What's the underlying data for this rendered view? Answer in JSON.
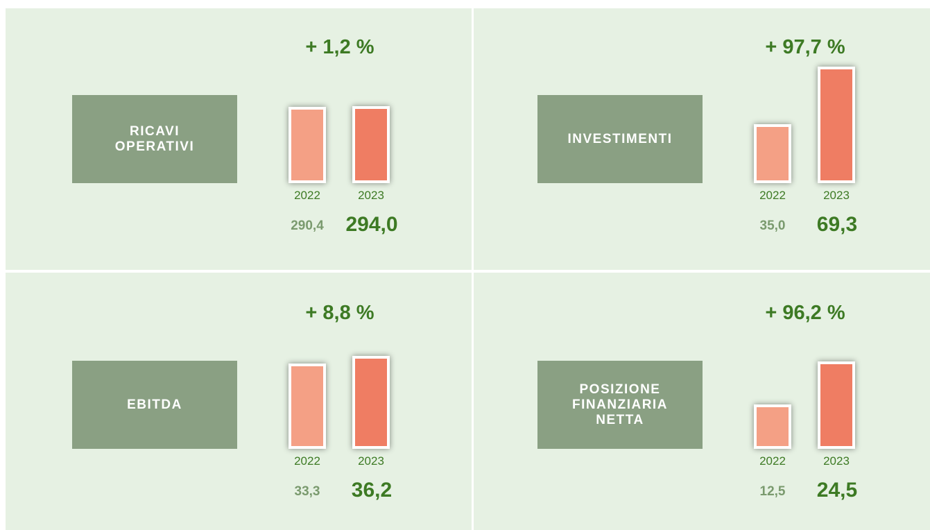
{
  "chart_data": [
    {
      "type": "bar",
      "title": "RICAVI\nOPERATIVI",
      "change": "+ 1,2 %",
      "categories": [
        "2022",
        "2023"
      ],
      "values": [
        290.4,
        294.0
      ],
      "value_labels": [
        "290,4",
        "294,0"
      ],
      "colors": [
        "#f4a085",
        "#ef7d63"
      ],
      "ylim": [
        0,
        450
      ]
    },
    {
      "type": "bar",
      "title": "INVESTIMENTI",
      "change": "+ 97,7 %",
      "categories": [
        "2022",
        "2023"
      ],
      "values": [
        35.0,
        69.3
      ],
      "value_labels": [
        "35,0",
        "69,3"
      ],
      "colors": [
        "#f4a085",
        "#ef7d63"
      ],
      "ylim": [
        0,
        70
      ]
    },
    {
      "type": "bar",
      "title": "EBITDA",
      "change": "+ 8,8 %",
      "categories": [
        "2022",
        "2023"
      ],
      "values": [
        33.3,
        36.2
      ],
      "value_labels": [
        "33,3",
        "36,2"
      ],
      "colors": [
        "#f4a085",
        "#ef7d63"
      ],
      "ylim": [
        0,
        46
      ]
    },
    {
      "type": "bar",
      "title": "POSIZIONE\nFINANZIARIA\nNETTA",
      "change": "+ 96,2 %",
      "categories": [
        "2022",
        "2023"
      ],
      "values": [
        12.5,
        24.5
      ],
      "value_labels": [
        "12,5",
        "24,5"
      ],
      "colors": [
        "#f4a085",
        "#ef7d63"
      ],
      "ylim": [
        0,
        33
      ]
    }
  ]
}
